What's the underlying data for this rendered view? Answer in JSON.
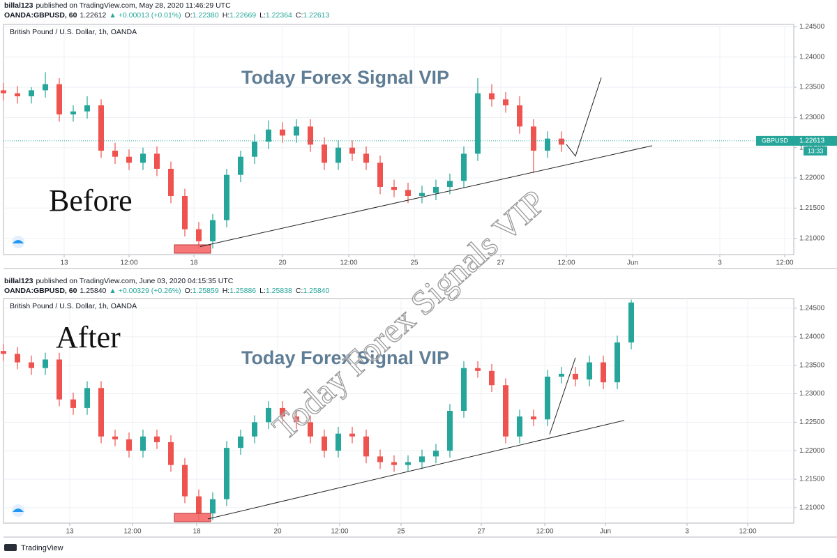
{
  "chart_data": [
    {
      "type": "candlestick",
      "header": {
        "author": "billal123",
        "published": "published on TradingView.com, May 28, 2020 11:46:29 UTC",
        "symbol": "OANDA:GBPUSD, 60",
        "price": "1.22612",
        "change": "▲ +0.00013 (+0.01%)",
        "ohlc": [
          {
            "label": "O:",
            "value": "1.22380"
          },
          {
            "label": "H:",
            "value": "1.22669"
          },
          {
            "label": "L:",
            "value": "1.22364"
          },
          {
            "label": "C:",
            "value": "1.22613"
          }
        ]
      },
      "pane_label": "British Pound / U.S. Dollar, 1h, OANDA",
      "title": "Today Forex Signal VIP",
      "label": "Before",
      "up_color": "#26a69a",
      "down_color": "#ef5350",
      "grid": true,
      "x": [
        0,
        1,
        2,
        3,
        4,
        5,
        6,
        7,
        8,
        9,
        10,
        11,
        12,
        13,
        14,
        15,
        16,
        17,
        18,
        19,
        20,
        21,
        22,
        23,
        24,
        25,
        26,
        27,
        28,
        29,
        30,
        31,
        32,
        33,
        34,
        35,
        36,
        37,
        38,
        39,
        40
      ],
      "open": [
        1.2345,
        1.234,
        1.2335,
        1.2345,
        1.2355,
        1.2305,
        1.231,
        1.232,
        1.2245,
        1.2235,
        1.2225,
        1.224,
        1.2215,
        1.217,
        1.2115,
        1.2095,
        1.213,
        1.2205,
        1.2235,
        1.226,
        1.228,
        1.227,
        1.2285,
        1.2255,
        1.2225,
        1.225,
        1.224,
        1.2225,
        1.2185,
        1.218,
        1.217,
        1.2175,
        1.2185,
        1.2195,
        1.224,
        1.234,
        1.233,
        1.232,
        1.2285,
        1.2245,
        1.2265
      ],
      "high": [
        1.2357,
        1.2352,
        1.235,
        1.2375,
        1.2365,
        1.232,
        1.2335,
        1.233,
        1.2258,
        1.2247,
        1.225,
        1.2252,
        1.2227,
        1.2182,
        1.2127,
        1.214,
        1.2215,
        1.2245,
        1.2272,
        1.2295,
        1.2292,
        1.2297,
        1.2297,
        1.2267,
        1.2262,
        1.2262,
        1.2252,
        1.2237,
        1.2197,
        1.2192,
        1.2187,
        1.2197,
        1.2207,
        1.2252,
        1.2365,
        1.2355,
        1.2342,
        1.2335,
        1.2297,
        1.2277,
        1.2277
      ],
      "low": [
        1.2328,
        1.2323,
        1.2323,
        1.2333,
        1.2293,
        1.2293,
        1.2298,
        1.2233,
        1.2223,
        1.2213,
        1.2213,
        1.2203,
        1.2158,
        1.2103,
        1.2083,
        1.2083,
        1.2118,
        1.2193,
        1.2223,
        1.2248,
        1.2258,
        1.2258,
        1.2243,
        1.2213,
        1.2213,
        1.2228,
        1.2213,
        1.2173,
        1.2168,
        1.2158,
        1.2158,
        1.2163,
        1.2173,
        1.2183,
        1.2228,
        1.2318,
        1.2308,
        1.2273,
        1.2208,
        1.2233,
        1.2243
      ],
      "close": [
        1.234,
        1.2335,
        1.2345,
        1.2355,
        1.2305,
        1.231,
        1.232,
        1.2245,
        1.2235,
        1.2225,
        1.224,
        1.2215,
        1.217,
        1.2115,
        1.2095,
        1.213,
        1.2205,
        1.2235,
        1.226,
        1.228,
        1.227,
        1.2285,
        1.2255,
        1.2225,
        1.225,
        1.224,
        1.2225,
        1.2185,
        1.218,
        1.217,
        1.2175,
        1.2185,
        1.2195,
        1.224,
        1.234,
        1.233,
        1.232,
        1.2285,
        1.2245,
        1.2265,
        1.2255
      ],
      "xlim": [
        0,
        56.65
      ],
      "xticks": [
        {
          "value": 4.35,
          "label": "13"
        },
        {
          "value": 9,
          "label": "12:00"
        },
        {
          "value": 13.65,
          "label": "18"
        },
        {
          "value": 20,
          "label": "20"
        },
        {
          "value": 24.75,
          "label": "12:00"
        },
        {
          "value": 29.45,
          "label": "25"
        },
        {
          "value": 35.65,
          "label": "27"
        },
        {
          "value": 40.35,
          "label": "12:00"
        },
        {
          "value": 45.1,
          "label": "Jun"
        },
        {
          "value": 51.35,
          "label": "3"
        },
        {
          "value": 56,
          "label": "12:00"
        }
      ],
      "ylim": [
        1.2073,
        1.2454
      ],
      "yticks": [
        {
          "value": 1.21,
          "label": "1.21000"
        },
        {
          "value": 1.215,
          "label": "1.21500"
        },
        {
          "value": 1.22,
          "label": "1.22000"
        },
        {
          "value": 1.225,
          "label": "1.22500"
        },
        {
          "value": 1.23,
          "label": "1.23000"
        },
        {
          "value": 1.235,
          "label": "1.23500"
        },
        {
          "value": 1.24,
          "label": "1.24000"
        },
        {
          "value": 1.245,
          "label": "1.24500"
        }
      ],
      "trendlines": [
        {
          "x": [
            14.1,
            46.5
          ],
          "y": [
            1.20863,
            1.22532
          ]
        },
        {
          "x": [
            40.35,
            41,
            42.85
          ],
          "y": [
            1.22555,
            1.2236,
            1.2366
          ]
        }
      ],
      "last_price": {
        "symbol": "GBPUSD",
        "value": 1.22613,
        "time": "13:33"
      }
    },
    {
      "type": "candlestick",
      "header": {
        "author": "billal123",
        "published": "published on TradingView.com, June 03, 2020 04:15:35 UTC",
        "symbol": "OANDA:GBPUSD, 60",
        "price": "1.25840",
        "change": "▲ +0.00329 (+0.26%)",
        "ohlc": [
          {
            "label": "O:",
            "value": "1.25859"
          },
          {
            "label": "H:",
            "value": "1.25886"
          },
          {
            "label": "L:",
            "value": "1.25838"
          },
          {
            "label": "C:",
            "value": "1.25840"
          }
        ]
      },
      "pane_label": "British Pound / U.S. Dollar, 1h, OANDA",
      "title": "Today Forex Signal VIP",
      "label": "After",
      "up_color": "#26a69a",
      "down_color": "#ef5350",
      "grid": true,
      "x": [
        0,
        1,
        2,
        3,
        4,
        5,
        6,
        7,
        8,
        9,
        10,
        11,
        12,
        13,
        14,
        15,
        16,
        17,
        18,
        19,
        20,
        21,
        22,
        23,
        24,
        25,
        26,
        27,
        28,
        29,
        30,
        31,
        32,
        33,
        34,
        35,
        36,
        37,
        38,
        39,
        40,
        41,
        42,
        43,
        44,
        45
      ],
      "open": [
        1.2375,
        1.237,
        1.2355,
        1.2345,
        1.236,
        1.229,
        1.2275,
        1.231,
        1.2225,
        1.222,
        1.22,
        1.2225,
        1.2215,
        1.2175,
        1.212,
        1.209,
        1.2115,
        1.2205,
        1.2225,
        1.225,
        1.2275,
        1.226,
        1.225,
        1.2225,
        1.22,
        1.223,
        1.2225,
        1.219,
        1.218,
        1.2175,
        1.218,
        1.219,
        1.22,
        1.227,
        1.2345,
        1.234,
        1.2315,
        1.2225,
        1.226,
        1.2255,
        1.233,
        1.2335,
        1.2325,
        1.2355,
        1.232,
        1.239
      ],
      "high": [
        1.2387,
        1.2382,
        1.2367,
        1.2372,
        1.2372,
        1.2302,
        1.2322,
        1.2322,
        1.2237,
        1.2232,
        1.2237,
        1.2237,
        1.2227,
        1.2187,
        1.2132,
        1.2127,
        1.2217,
        1.2237,
        1.2262,
        1.2287,
        1.2287,
        1.2272,
        1.2262,
        1.2237,
        1.2242,
        1.2242,
        1.2237,
        1.2202,
        1.2192,
        1.2192,
        1.2202,
        1.2212,
        1.2282,
        1.2357,
        1.2357,
        1.2352,
        1.2327,
        1.2272,
        1.2272,
        1.2342,
        1.2347,
        1.2347,
        1.2367,
        1.2367,
        1.2402,
        1.2465
      ],
      "low": [
        1.2358,
        1.2343,
        1.2333,
        1.2333,
        1.2278,
        1.2263,
        1.2263,
        1.2213,
        1.2208,
        1.2188,
        1.2188,
        1.2203,
        1.2163,
        1.2108,
        1.2078,
        1.2078,
        1.2103,
        1.2193,
        1.2213,
        1.2238,
        1.2248,
        1.2238,
        1.2213,
        1.2188,
        1.2188,
        1.2213,
        1.2178,
        1.2168,
        1.2163,
        1.2163,
        1.2168,
        1.2178,
        1.2188,
        1.2258,
        1.2328,
        1.2303,
        1.2213,
        1.2213,
        1.2243,
        1.2243,
        1.2318,
        1.2313,
        1.2313,
        1.2308,
        1.2308,
        1.2378
      ],
      "close": [
        1.237,
        1.2355,
        1.2345,
        1.236,
        1.229,
        1.2275,
        1.231,
        1.2225,
        1.222,
        1.22,
        1.2225,
        1.2215,
        1.2175,
        1.212,
        1.209,
        1.2115,
        1.2205,
        1.2225,
        1.225,
        1.2275,
        1.226,
        1.225,
        1.2225,
        1.22,
        1.223,
        1.2225,
        1.219,
        1.218,
        1.2175,
        1.218,
        1.219,
        1.22,
        1.227,
        1.2345,
        1.234,
        1.2315,
        1.2225,
        1.226,
        1.2255,
        1.233,
        1.2335,
        1.2325,
        1.2355,
        1.232,
        1.239,
        1.246
      ],
      "xlim": [
        0,
        56.65
      ],
      "xticks": [
        {
          "value": 4.75,
          "label": "13"
        },
        {
          "value": 9.25,
          "label": "12:00"
        },
        {
          "value": 13.85,
          "label": "18"
        },
        {
          "value": 19.65,
          "label": "20"
        },
        {
          "value": 24.1,
          "label": "12:00"
        },
        {
          "value": 28.5,
          "label": "25"
        },
        {
          "value": 34.25,
          "label": "27"
        },
        {
          "value": 38.8,
          "label": "12:00"
        },
        {
          "value": 43.15,
          "label": "Jun"
        },
        {
          "value": 49,
          "label": "3"
        },
        {
          "value": 53.35,
          "label": "12:00"
        }
      ],
      "ylim": [
        1.2073,
        1.2467
      ],
      "yticks": [
        {
          "value": 1.21,
          "label": "1.21000"
        },
        {
          "value": 1.215,
          "label": "1.21500"
        },
        {
          "value": 1.22,
          "label": "1.22000"
        },
        {
          "value": 1.225,
          "label": "1.22500"
        },
        {
          "value": 1.23,
          "label": "1.23000"
        },
        {
          "value": 1.235,
          "label": "1.23500"
        },
        {
          "value": 1.24,
          "label": "1.24000"
        },
        {
          "value": 1.245,
          "label": "1.24500"
        }
      ],
      "trendlines": [
        {
          "x": [
            14.65,
            44.5
          ],
          "y": [
            1.20804,
            1.22532
          ]
        },
        {
          "x": [
            39.15,
            41
          ],
          "y": [
            1.22287,
            1.23632
          ]
        }
      ]
    }
  ],
  "overlay": {
    "watermark": "Today Forex Signals VIP"
  },
  "footer": {
    "brand": "TradingView"
  }
}
